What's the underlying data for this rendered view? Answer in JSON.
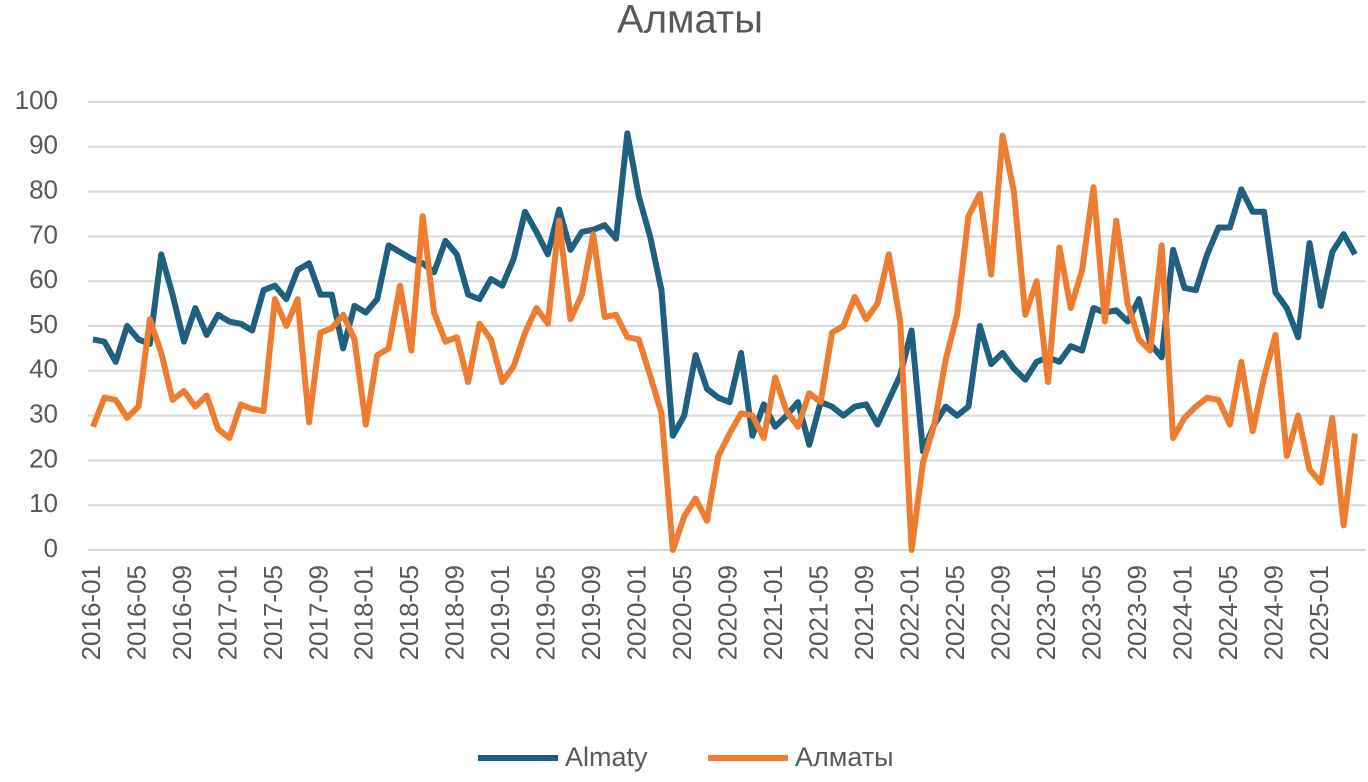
{
  "chart_data": {
    "type": "line",
    "title": "Алматы",
    "categories": [
      "2016-01",
      null,
      null,
      null,
      "2016-05",
      null,
      null,
      null,
      "2016-09",
      null,
      null,
      null,
      "2017-01",
      null,
      null,
      null,
      "2017-05",
      null,
      null,
      null,
      "2017-09",
      null,
      null,
      null,
      "2018-01",
      null,
      null,
      null,
      "2018-05",
      null,
      null,
      null,
      "2018-09",
      null,
      null,
      null,
      "2019-01",
      null,
      null,
      null,
      "2019-05",
      null,
      null,
      null,
      "2019-09",
      null,
      null,
      null,
      "2020-01",
      null,
      null,
      null,
      "2020-05",
      null,
      null,
      null,
      "2020-09",
      null,
      null,
      null,
      "2021-01",
      null,
      null,
      null,
      "2021-05",
      null,
      null,
      null,
      "2021-09",
      null,
      null,
      null,
      "2022-01",
      null,
      null,
      null,
      "2022-05",
      null,
      null,
      null,
      "2022-09",
      null,
      null,
      null,
      "2023-01",
      null,
      null,
      null,
      "2023-05",
      null,
      null,
      null,
      "2023-09",
      null,
      null,
      null,
      "2024-01",
      null,
      null,
      null,
      "2024-05",
      null,
      null,
      null,
      "2024-09",
      null,
      null,
      null,
      "2025-01",
      null,
      null,
      null
    ],
    "series": [
      {
        "name": "Almaty",
        "color": "#1f5f7f",
        "values": [
          47,
          46.5,
          42,
          50,
          47,
          46,
          66,
          57,
          46.5,
          54,
          48,
          52.5,
          51,
          50.5,
          49,
          58,
          59,
          56,
          62.5,
          64,
          57,
          57,
          45,
          54.5,
          53,
          56,
          68,
          66.5,
          65,
          64,
          62,
          69,
          66,
          57,
          56,
          60.5,
          59,
          65,
          75.5,
          71,
          66,
          76,
          67,
          71,
          71.5,
          72.5,
          69.5,
          93,
          79,
          70,
          58,
          25.5,
          30,
          43.5,
          36,
          34,
          33,
          44,
          25.5,
          32.5,
          27.5,
          30,
          33,
          23.5,
          33,
          32,
          30,
          32,
          32.5,
          28,
          33.5,
          39,
          49,
          22,
          28,
          32,
          30,
          32,
          50,
          41.5,
          44,
          40.5,
          38,
          42,
          43,
          42,
          45.5,
          44.5,
          54,
          53,
          53.5,
          51,
          56,
          46,
          43,
          67,
          58.5,
          58,
          66,
          72,
          72,
          80.5,
          75.5,
          75.5,
          57.5,
          54,
          47.5,
          68.5,
          54.5,
          66.5,
          70.5,
          66
        ]
      },
      {
        "name": "Алматы",
        "color": "#ee7d31",
        "values": [
          27.5,
          34,
          33.5,
          29.5,
          32,
          51.5,
          44,
          33.5,
          35.5,
          32,
          34.5,
          27,
          25,
          32.5,
          31.5,
          31,
          56,
          50,
          56,
          28.5,
          48.5,
          49.5,
          52.5,
          47,
          28,
          43.5,
          45,
          59,
          44.5,
          74.5,
          53,
          46.5,
          47.5,
          37.5,
          50.5,
          47,
          37.5,
          41,
          48.5,
          54,
          50.5,
          73.5,
          51.5,
          57,
          70.5,
          52,
          52.5,
          47.5,
          47,
          39,
          30.5,
          0,
          7.5,
          11.5,
          6.5,
          21,
          26,
          30.5,
          30,
          25,
          38.5,
          31,
          27.5,
          35,
          33,
          48.5,
          50,
          56.5,
          51.5,
          55,
          66,
          51,
          0,
          19.5,
          28,
          42.5,
          52.5,
          74.5,
          79.5,
          61.5,
          92.5,
          80,
          52.5,
          60,
          37.5,
          67.5,
          54,
          62.5,
          81,
          51,
          73.5,
          55,
          47,
          44.5,
          68,
          25,
          29.5,
          32,
          34,
          33.5,
          28,
          42,
          26.5,
          38.5,
          48,
          21,
          30,
          18,
          15,
          29.5,
          5.5,
          26
        ]
      }
    ],
    "ylim": [
      0,
      100
    ],
    "yticks": [
      0,
      10,
      20,
      30,
      40,
      50,
      60,
      70,
      80,
      90,
      100
    ],
    "grid": true,
    "legend": "bottom"
  }
}
